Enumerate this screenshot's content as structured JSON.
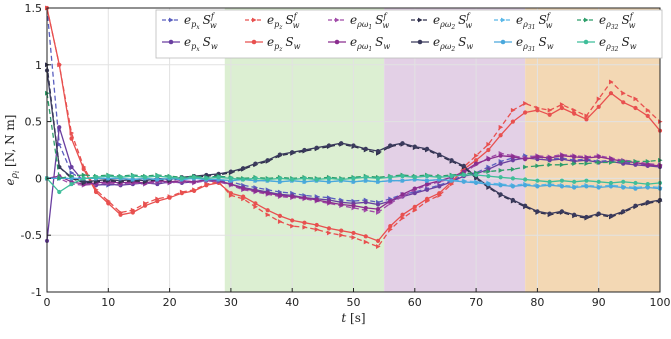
{
  "chart_data": {
    "type": "line",
    "xlabel": "t [s]",
    "ylabel": "e_{ρ_i} [N, N m]",
    "xlim": [
      0,
      100
    ],
    "ylim": [
      -1,
      1.5
    ],
    "xticks": [
      0,
      10,
      20,
      30,
      40,
      50,
      60,
      70,
      80,
      90,
      100
    ],
    "yticks": [
      -1,
      -0.5,
      0,
      0.5,
      1,
      1.5
    ],
    "ytick_labels": [
      "-1",
      "-0.5",
      "0",
      "0.5",
      "1",
      "1.5"
    ],
    "grid": true,
    "legend_position": "top-right",
    "shaded_regions": [
      {
        "x_start": 29,
        "x_end": 55,
        "color": "#dcefd2"
      },
      {
        "x_start": 55,
        "x_end": 78,
        "color": "#e3d0e6"
      },
      {
        "x_start": 78,
        "x_end": 100,
        "color": "#f3d8b4"
      }
    ],
    "x": [
      0,
      2,
      4,
      6,
      8,
      10,
      12,
      14,
      16,
      18,
      20,
      22,
      24,
      26,
      28,
      30,
      32,
      34,
      36,
      38,
      40,
      42,
      44,
      46,
      48,
      50,
      52,
      54,
      56,
      58,
      60,
      62,
      64,
      66,
      68,
      70,
      72,
      74,
      76,
      78,
      80,
      82,
      84,
      86,
      88,
      90,
      92,
      94,
      96,
      98,
      100
    ],
    "series": [
      {
        "name": "e_{p_x} S_w^f",
        "color": "#5a5fbf",
        "marker": "triangle",
        "dashed": true,
        "values": [
          1.5,
          0.3,
          0.05,
          -0.02,
          -0.05,
          -0.06,
          -0.05,
          -0.04,
          -0.05,
          -0.03,
          -0.04,
          -0.02,
          -0.03,
          -0.02,
          -0.02,
          -0.03,
          -0.06,
          -0.08,
          -0.1,
          -0.12,
          -0.13,
          -0.15,
          -0.16,
          -0.17,
          -0.19,
          -0.2,
          -0.19,
          -0.21,
          -0.18,
          -0.14,
          -0.12,
          -0.09,
          -0.06,
          -0.02,
          0.03,
          0.05,
          0.1,
          0.15,
          0.18,
          0.2,
          0.19,
          0.17,
          0.18,
          0.16,
          0.17,
          0.15,
          0.16,
          0.14,
          0.13,
          0.12,
          0.11
        ]
      },
      {
        "name": "e_{p_x} S_w",
        "color": "#6a3fa0",
        "marker": "circle",
        "dashed": false,
        "values": [
          -0.55,
          0.45,
          0.1,
          -0.03,
          -0.06,
          -0.05,
          -0.06,
          -0.05,
          -0.04,
          -0.05,
          -0.03,
          -0.04,
          -0.03,
          -0.02,
          -0.03,
          -0.05,
          -0.08,
          -0.1,
          -0.12,
          -0.14,
          -0.15,
          -0.17,
          -0.18,
          -0.19,
          -0.21,
          -0.22,
          -0.21,
          -0.23,
          -0.2,
          -0.16,
          -0.13,
          -0.1,
          -0.07,
          -0.03,
          0.02,
          0.04,
          0.08,
          0.13,
          0.16,
          0.18,
          0.17,
          0.16,
          0.17,
          0.15,
          0.16,
          0.14,
          0.15,
          0.13,
          0.12,
          0.11,
          0.1
        ]
      },
      {
        "name": "e_{p_z} S_w^f",
        "color": "#e8504f",
        "marker": "triangle",
        "dashed": true,
        "values": [
          1.5,
          1.0,
          0.4,
          0.1,
          -0.1,
          -0.2,
          -0.3,
          -0.28,
          -0.22,
          -0.18,
          -0.16,
          -0.12,
          -0.1,
          -0.05,
          -0.03,
          -0.15,
          -0.18,
          -0.25,
          -0.32,
          -0.38,
          -0.42,
          -0.43,
          -0.45,
          -0.48,
          -0.5,
          -0.52,
          -0.56,
          -0.6,
          -0.45,
          -0.35,
          -0.28,
          -0.2,
          -0.15,
          -0.05,
          0.1,
          0.2,
          0.3,
          0.45,
          0.6,
          0.66,
          0.62,
          0.6,
          0.65,
          0.6,
          0.55,
          0.7,
          0.85,
          0.75,
          0.7,
          0.6,
          0.5
        ]
      },
      {
        "name": "e_{p_z} S_w",
        "color": "#e8504f",
        "marker": "circle",
        "dashed": false,
        "values": [
          1.5,
          1.0,
          0.35,
          0.08,
          -0.12,
          -0.22,
          -0.32,
          -0.3,
          -0.24,
          -0.2,
          -0.17,
          -0.13,
          -0.11,
          -0.06,
          -0.04,
          -0.13,
          -0.16,
          -0.22,
          -0.28,
          -0.33,
          -0.37,
          -0.39,
          -0.41,
          -0.44,
          -0.46,
          -0.48,
          -0.51,
          -0.55,
          -0.42,
          -0.32,
          -0.25,
          -0.18,
          -0.13,
          -0.03,
          0.08,
          0.16,
          0.25,
          0.38,
          0.5,
          0.58,
          0.6,
          0.56,
          0.62,
          0.57,
          0.52,
          0.63,
          0.75,
          0.67,
          0.62,
          0.55,
          0.42
        ]
      },
      {
        "name": "e_{ρω_1} S_w^f",
        "color": "#a14ba8",
        "marker": "triangle",
        "dashed": true,
        "values": [
          0.0,
          0.0,
          -0.05,
          -0.06,
          -0.05,
          -0.04,
          -0.05,
          -0.04,
          -0.05,
          -0.03,
          -0.04,
          -0.03,
          -0.04,
          -0.02,
          -0.03,
          -0.06,
          -0.1,
          -0.12,
          -0.14,
          -0.16,
          -0.17,
          -0.18,
          -0.2,
          -0.22,
          -0.24,
          -0.26,
          -0.28,
          -0.3,
          -0.22,
          -0.16,
          -0.1,
          -0.06,
          -0.03,
          0.0,
          0.05,
          0.12,
          0.18,
          0.22,
          0.2,
          0.18,
          0.2,
          0.19,
          0.21,
          0.2,
          0.19,
          0.2,
          0.18,
          0.16,
          0.15,
          0.13,
          0.12
        ]
      },
      {
        "name": "e_{ρω_1} S_w",
        "color": "#8b2e8f",
        "marker": "circle",
        "dashed": false,
        "values": [
          0.0,
          0.02,
          -0.03,
          -0.05,
          -0.04,
          -0.03,
          -0.04,
          -0.03,
          -0.04,
          -0.02,
          -0.03,
          -0.02,
          -0.03,
          -0.01,
          -0.02,
          -0.05,
          -0.09,
          -0.11,
          -0.13,
          -0.15,
          -0.16,
          -0.17,
          -0.19,
          -0.21,
          -0.23,
          -0.24,
          -0.26,
          -0.27,
          -0.2,
          -0.14,
          -0.09,
          -0.05,
          -0.02,
          0.01,
          0.06,
          0.13,
          0.17,
          0.2,
          0.19,
          0.17,
          0.19,
          0.18,
          0.2,
          0.19,
          0.18,
          0.19,
          0.17,
          0.15,
          0.14,
          0.12,
          0.11
        ]
      },
      {
        "name": "e_{ρω_2} S_w^f",
        "color": "#2d2d4a",
        "marker": "triangle",
        "dashed": true,
        "values": [
          1.0,
          0.1,
          0.0,
          -0.04,
          -0.03,
          -0.02,
          -0.03,
          -0.02,
          -0.03,
          -0.01,
          -0.02,
          0.0,
          0.01,
          0.02,
          0.03,
          0.05,
          0.08,
          0.12,
          0.15,
          0.2,
          0.22,
          0.24,
          0.26,
          0.28,
          0.3,
          0.28,
          0.25,
          0.22,
          0.28,
          0.3,
          0.27,
          0.25,
          0.2,
          0.15,
          0.1,
          0.0,
          -0.08,
          -0.15,
          -0.2,
          -0.25,
          -0.3,
          -0.32,
          -0.3,
          -0.33,
          -0.35,
          -0.32,
          -0.34,
          -0.3,
          -0.25,
          -0.22,
          -0.2
        ]
      },
      {
        "name": "e_{ρω_2} S_w",
        "color": "#3a3a5c",
        "marker": "circle",
        "dashed": false,
        "values": [
          0.95,
          0.1,
          0.01,
          -0.03,
          -0.02,
          -0.01,
          -0.02,
          -0.01,
          -0.02,
          0.0,
          -0.01,
          0.01,
          0.02,
          0.03,
          0.04,
          0.06,
          0.09,
          0.13,
          0.16,
          0.21,
          0.23,
          0.25,
          0.27,
          0.29,
          0.31,
          0.29,
          0.26,
          0.24,
          0.29,
          0.31,
          0.28,
          0.26,
          0.21,
          0.16,
          0.11,
          0.01,
          -0.07,
          -0.14,
          -0.19,
          -0.24,
          -0.29,
          -0.31,
          -0.29,
          -0.32,
          -0.34,
          -0.31,
          -0.33,
          -0.29,
          -0.24,
          -0.21,
          -0.19
        ]
      },
      {
        "name": "e_{ρ_{3_1}} S_w^f",
        "color": "#5ab8e8",
        "marker": "triangle",
        "dashed": true,
        "values": [
          0.0,
          0.0,
          0.0,
          0.0,
          0.0,
          0.0,
          0.0,
          -0.01,
          0.0,
          -0.01,
          0.0,
          -0.01,
          0.0,
          -0.01,
          -0.01,
          -0.02,
          -0.01,
          -0.02,
          -0.02,
          -0.03,
          -0.02,
          -0.03,
          -0.02,
          -0.03,
          -0.02,
          -0.03,
          -0.02,
          -0.03,
          -0.02,
          -0.02,
          -0.01,
          -0.02,
          -0.01,
          -0.02,
          -0.02,
          -0.03,
          -0.04,
          -0.05,
          -0.06,
          -0.05,
          -0.06,
          -0.05,
          -0.06,
          -0.07,
          -0.06,
          -0.07,
          -0.06,
          -0.07,
          -0.08,
          -0.07,
          -0.08
        ]
      },
      {
        "name": "e_{ρ_{3_1}} S_w",
        "color": "#4aa8dc",
        "marker": "circle",
        "dashed": false,
        "values": [
          0.0,
          0.0,
          0.0,
          0.0,
          0.0,
          0.0,
          0.0,
          -0.01,
          0.0,
          -0.01,
          0.0,
          -0.01,
          0.0,
          -0.01,
          -0.01,
          -0.02,
          -0.01,
          -0.02,
          -0.02,
          -0.03,
          -0.02,
          -0.03,
          -0.02,
          -0.03,
          -0.02,
          -0.03,
          -0.02,
          -0.03,
          -0.02,
          -0.02,
          -0.01,
          -0.02,
          -0.01,
          -0.02,
          -0.03,
          -0.04,
          -0.05,
          -0.06,
          -0.07,
          -0.06,
          -0.07,
          -0.06,
          -0.07,
          -0.08,
          -0.07,
          -0.08,
          -0.07,
          -0.08,
          -0.09,
          -0.08,
          -0.09
        ]
      },
      {
        "name": "e_{ρ_{3_2}} S_w^f",
        "color": "#2e9e6a",
        "marker": "triangle",
        "dashed": true,
        "values": [
          0.75,
          0.0,
          0.02,
          0.03,
          0.02,
          0.03,
          0.02,
          0.03,
          0.02,
          0.03,
          0.02,
          0.01,
          0.02,
          0.01,
          0.02,
          0.01,
          0.0,
          0.01,
          0.0,
          0.01,
          0.0,
          0.01,
          0.0,
          0.01,
          0.0,
          0.01,
          0.02,
          0.01,
          0.02,
          0.03,
          0.02,
          0.03,
          0.02,
          0.03,
          0.04,
          0.05,
          0.06,
          0.07,
          0.08,
          0.1,
          0.11,
          0.12,
          0.12,
          0.13,
          0.13,
          0.14,
          0.14,
          0.15,
          0.15,
          0.15,
          0.16
        ]
      },
      {
        "name": "e_{ρ_{3_2}} S_w",
        "color": "#3fbe9a",
        "marker": "circle",
        "dashed": false,
        "values": [
          0.0,
          -0.12,
          -0.05,
          0.0,
          0.01,
          0.02,
          0.01,
          0.02,
          0.01,
          0.02,
          0.01,
          0.0,
          0.01,
          0.0,
          0.01,
          0.0,
          -0.01,
          0.0,
          -0.01,
          0.0,
          -0.01,
          0.0,
          -0.01,
          0.0,
          -0.01,
          0.0,
          0.01,
          0.0,
          0.01,
          0.02,
          0.01,
          0.02,
          0.01,
          0.02,
          0.03,
          0.03,
          0.02,
          0.01,
          0.0,
          -0.01,
          -0.02,
          -0.03,
          -0.02,
          -0.03,
          -0.02,
          -0.03,
          -0.04,
          -0.03,
          -0.04,
          -0.05,
          -0.04
        ]
      }
    ],
    "legend": [
      {
        "base": "e",
        "sub": "p",
        "subsub": "x",
        "tag": "S",
        "tsub": "w",
        "tsup": "f"
      },
      {
        "base": "e",
        "sub": "p",
        "subsub": "z",
        "tag": "S",
        "tsub": "w",
        "tsup": "f"
      },
      {
        "base": "e",
        "sub": "ρω",
        "subsub": "1",
        "tag": "S",
        "tsub": "w",
        "tsup": "f"
      },
      {
        "base": "e",
        "sub": "ρω",
        "subsub": "2",
        "tag": "S",
        "tsub": "w",
        "tsup": "f"
      },
      {
        "base": "e",
        "sub": "ρ",
        "subsub": "31",
        "tag": "S",
        "tsub": "w",
        "tsup": "f"
      },
      {
        "base": "e",
        "sub": "ρ",
        "subsub": "32",
        "tag": "S",
        "tsub": "w",
        "tsup": "f"
      },
      {
        "base": "e",
        "sub": "p",
        "subsub": "x",
        "tag": "S",
        "tsub": "w",
        "tsup": ""
      },
      {
        "base": "e",
        "sub": "p",
        "subsub": "z",
        "tag": "S",
        "tsub": "w",
        "tsup": ""
      },
      {
        "base": "e",
        "sub": "ρω",
        "subsub": "1",
        "tag": "S",
        "tsub": "w",
        "tsup": ""
      },
      {
        "base": "e",
        "sub": "ρω",
        "subsub": "2",
        "tag": "S",
        "tsub": "w",
        "tsup": ""
      },
      {
        "base": "e",
        "sub": "ρ",
        "subsub": "31",
        "tag": "S",
        "tsub": "w",
        "tsup": ""
      },
      {
        "base": "e",
        "sub": "ρ",
        "subsub": "32",
        "tag": "S",
        "tsub": "w",
        "tsup": ""
      }
    ]
  }
}
